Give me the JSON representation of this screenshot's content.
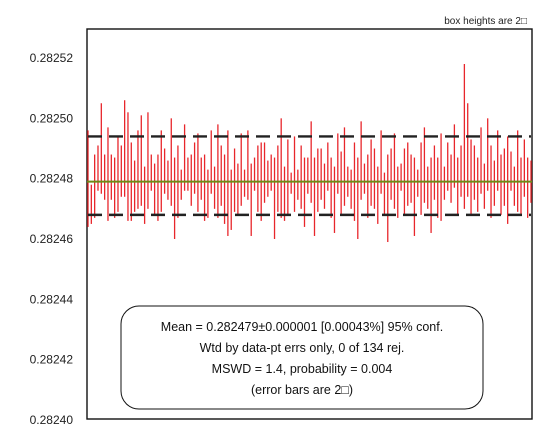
{
  "chart_data": {
    "type": "bar",
    "note": "box heights are 2□",
    "ylim": [
      0.2824,
      0.28254
    ],
    "y_ticks": [
      "0.28252",
      "0.28250",
      "0.28248",
      "0.28246",
      "0.28244",
      "0.28242",
      "0.28240"
    ],
    "y_tick_values": [
      0.28252,
      0.2825,
      0.28248,
      0.28246,
      0.28244,
      0.28242,
      0.2824
    ],
    "grid": false,
    "mean": 0.282479,
    "band_upper": 0.282494,
    "band_lower": 0.282468,
    "n_points": 134,
    "stats": {
      "line1": "Mean = 0.282479±0.000001   [0.00043%]   95% conf.",
      "line2": "Wtd by data-pt errs only, 0 of 134 rej.",
      "line3": "MSWD = 1.4, probability = 0.004",
      "line4": "(error bars are 2□)"
    },
    "colors": {
      "bars": "#e8262b",
      "mean_line": "#6e8a16",
      "band": "#222222",
      "frame": "#111111"
    },
    "values": [
      [
        0.282464,
        0.282496
      ],
      [
        0.282465,
        0.282478
      ],
      [
        0.282467,
        0.282488
      ],
      [
        0.282476,
        0.282491
      ],
      [
        0.282475,
        0.282505
      ],
      [
        0.282473,
        0.282488
      ],
      [
        0.282466,
        0.282497
      ],
      [
        0.282473,
        0.282488
      ],
      [
        0.282467,
        0.282487
      ],
      [
        0.282469,
        0.282494
      ],
      [
        0.282474,
        0.282491
      ],
      [
        0.282474,
        0.282506
      ],
      [
        0.282466,
        0.282502
      ],
      [
        0.282466,
        0.282492
      ],
      [
        0.282469,
        0.282486
      ],
      [
        0.28247,
        0.282496
      ],
      [
        0.282471,
        0.282501
      ],
      [
        0.282465,
        0.282484
      ],
      [
        0.28247,
        0.282502
      ],
      [
        0.282476,
        0.282488
      ],
      [
        0.282468,
        0.282485
      ],
      [
        0.282466,
        0.282488
      ],
      [
        0.282469,
        0.282496
      ],
      [
        0.282475,
        0.28249
      ],
      [
        0.282473,
        0.282486
      ],
      [
        0.282471,
        0.2825
      ],
      [
        0.28246,
        0.282487
      ],
      [
        0.282467,
        0.282491
      ],
      [
        0.282473,
        0.282483
      ],
      [
        0.282476,
        0.282498
      ],
      [
        0.282476,
        0.282487
      ],
      [
        0.282471,
        0.282488
      ],
      [
        0.282475,
        0.282492
      ],
      [
        0.282469,
        0.282495
      ],
      [
        0.282473,
        0.282487
      ],
      [
        0.282466,
        0.282488
      ],
      [
        0.282467,
        0.282483
      ],
      [
        0.282475,
        0.282496
      ],
      [
        0.28247,
        0.282484
      ],
      [
        0.282467,
        0.282498
      ],
      [
        0.282471,
        0.282491
      ],
      [
        0.282465,
        0.282488
      ],
      [
        0.282461,
        0.282496
      ],
      [
        0.282463,
        0.282483
      ],
      [
        0.282469,
        0.28249
      ],
      [
        0.282468,
        0.282485
      ],
      [
        0.282471,
        0.282495
      ],
      [
        0.282474,
        0.282483
      ],
      [
        0.282473,
        0.282496
      ],
      [
        0.282461,
        0.282485
      ],
      [
        0.282476,
        0.282487
      ],
      [
        0.282469,
        0.282491
      ],
      [
        0.282466,
        0.282492
      ],
      [
        0.282472,
        0.282492
      ],
      [
        0.282474,
        0.282486
      ],
      [
        0.282476,
        0.282488
      ],
      [
        0.28246,
        0.282487
      ],
      [
        0.282469,
        0.282491
      ],
      [
        0.282467,
        0.2825
      ],
      [
        0.282466,
        0.282484
      ],
      [
        0.282468,
        0.282493
      ],
      [
        0.282475,
        0.282482
      ],
      [
        0.282469,
        0.282494
      ],
      [
        0.282473,
        0.282483
      ],
      [
        0.28247,
        0.282491
      ],
      [
        0.282464,
        0.282487
      ],
      [
        0.282475,
        0.282487
      ],
      [
        0.282472,
        0.282499
      ],
      [
        0.282461,
        0.282487
      ],
      [
        0.282469,
        0.28249
      ],
      [
        0.282473,
        0.28249
      ],
      [
        0.28247,
        0.282485
      ],
      [
        0.282476,
        0.282492
      ],
      [
        0.282467,
        0.282487
      ],
      [
        0.282462,
        0.282484
      ],
      [
        0.282475,
        0.282495
      ],
      [
        0.282468,
        0.282489
      ],
      [
        0.282471,
        0.282497
      ],
      [
        0.282474,
        0.282484
      ],
      [
        0.28247,
        0.282483
      ],
      [
        0.282466,
        0.282492
      ],
      [
        0.28246,
        0.282487
      ],
      [
        0.282473,
        0.282499
      ],
      [
        0.282475,
        0.282485
      ],
      [
        0.282467,
        0.282488
      ],
      [
        0.282471,
        0.282493
      ],
      [
        0.28247,
        0.28249
      ],
      [
        0.282465,
        0.282484
      ],
      [
        0.282475,
        0.282496
      ],
      [
        0.282468,
        0.282482
      ],
      [
        0.282459,
        0.282488
      ],
      [
        0.282473,
        0.28249
      ],
      [
        0.28247,
        0.282495
      ],
      [
        0.282467,
        0.282484
      ],
      [
        0.282476,
        0.282485
      ],
      [
        0.282468,
        0.28249
      ],
      [
        0.282471,
        0.282492
      ],
      [
        0.282472,
        0.282488
      ],
      [
        0.282461,
        0.282487
      ],
      [
        0.282474,
        0.282483
      ],
      [
        0.282468,
        0.282492
      ],
      [
        0.282472,
        0.282497
      ],
      [
        0.28247,
        0.282484
      ],
      [
        0.282462,
        0.282487
      ],
      [
        0.282473,
        0.282491
      ],
      [
        0.282467,
        0.282487
      ],
      [
        0.282466,
        0.282495
      ],
      [
        0.282473,
        0.282484
      ],
      [
        0.282476,
        0.282492
      ],
      [
        0.282472,
        0.282488
      ],
      [
        0.282477,
        0.282498
      ],
      [
        0.282468,
        0.282487
      ],
      [
        0.282474,
        0.282491
      ],
      [
        0.28247,
        0.282518
      ],
      [
        0.282474,
        0.282505
      ],
      [
        0.282468,
        0.282493
      ],
      [
        0.282473,
        0.282491
      ],
      [
        0.282469,
        0.282487
      ],
      [
        0.282475,
        0.282497
      ],
      [
        0.28247,
        0.282485
      ],
      [
        0.282476,
        0.2825
      ],
      [
        0.282467,
        0.282491
      ],
      [
        0.282471,
        0.282486
      ],
      [
        0.282476,
        0.282496
      ],
      [
        0.282468,
        0.282488
      ],
      [
        0.282471,
        0.28249
      ],
      [
        0.282465,
        0.282494
      ],
      [
        0.282476,
        0.282489
      ],
      [
        0.282471,
        0.282484
      ],
      [
        0.282469,
        0.282496
      ],
      [
        0.282468,
        0.282487
      ],
      [
        0.282474,
        0.282493
      ],
      [
        0.282467,
        0.282487
      ],
      [
        0.282472,
        0.282486
      ]
    ]
  }
}
